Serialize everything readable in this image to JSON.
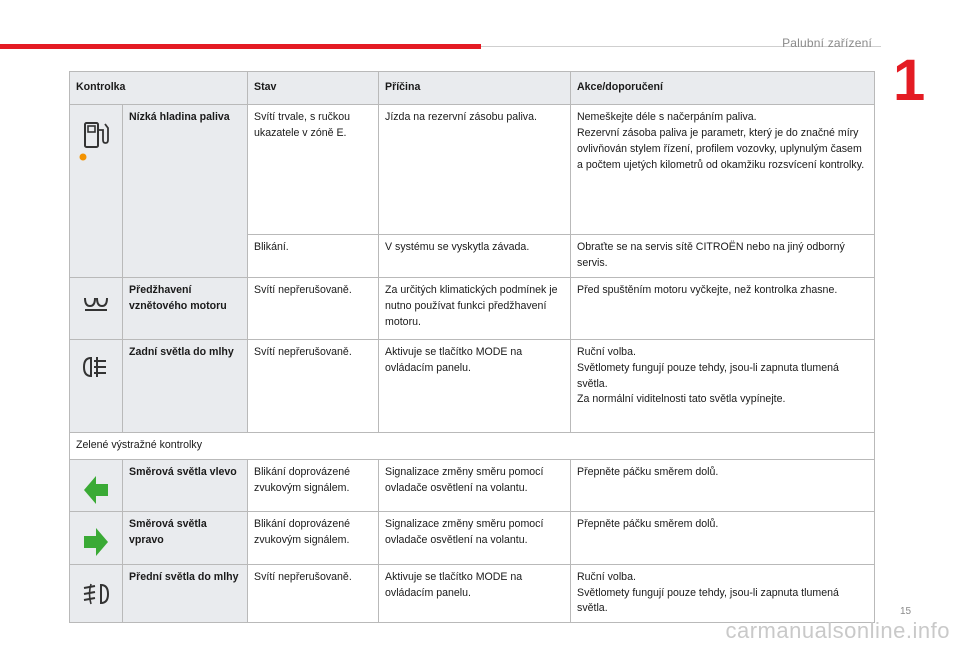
{
  "header": {
    "section_title": "Palubní zařízení",
    "chapter_number": "1",
    "accent_color": "#e41b23"
  },
  "table": {
    "columns": [
      "Kontrolka",
      "Stav",
      "Příčina",
      "Akce/doporučení"
    ],
    "rows": [
      {
        "icon": "fuel-pump-icon",
        "name": "Nízká hladina paliva",
        "entries": [
          {
            "stav": "Svítí trvale, s ručkou ukazatele v zóně E.",
            "pricina": "Jízda na rezervní zásobu paliva.",
            "akce": "Nemeškejte déle s načerpáním paliva.\nRezervní zásoba paliva je parametr, který je do značné míry ovlivňován stylem řízení, profilem vozovky, uplynulým časem a počtem ujetých kilometrů od okamžiku rozsvícení kontrolky."
          },
          {
            "stav": "Blikání.",
            "pricina": "V systému se vyskytla závada.",
            "akce": "Obraťte se na servis sítě CITROËN nebo na jiný odborný servis."
          }
        ]
      },
      {
        "icon": "glow-plug-icon",
        "name": "Předžhavení vznětového motoru",
        "stav": "Svítí nepřerušovaně.",
        "pricina": "Za určitých klimatických podmínek je nutno používat funkci předžhavení motoru.",
        "akce": "Před spuštěním motoru vyčkejte, než kontrolka zhasne."
      },
      {
        "icon": "rear-fog-light-icon",
        "name": "Zadní světla do mlhy",
        "stav": "Svítí nepřerušovaně.",
        "pricina": "Aktivuje se tlačítko MODE na ovládacím panelu.",
        "akce": "Ruční volba.\nSvětlomety fungují pouze tehdy, jsou-li zapnuta tlumená světla.\nZa normální viditelnosti tato světla vypínejte."
      }
    ],
    "section_label": "Zelené výstražné kontrolky",
    "green_rows": [
      {
        "icon": "arrow-left-icon",
        "name": "Směrová světla vlevo",
        "stav": "Blikání doprovázené zvukovým signálem.",
        "pricina": "Signalizace změny směru pomocí ovladače osvětlení na volantu.",
        "akce": "Přepněte páčku směrem dolů."
      },
      {
        "icon": "arrow-right-icon",
        "name": "Směrová světla vpravo",
        "stav": "Blikání doprovázené zvukovým signálem.",
        "pricina": "Signalizace změny směru pomocí ovladače osvětlení na volantu.",
        "akce": "Přepněte páčku směrem dolů."
      },
      {
        "icon": "front-fog-light-icon",
        "name": "Přední světla do mlhy",
        "stav": "Svítí nepřerušovaně.",
        "pricina": "Aktivuje se tlačítko MODE na ovládacím panelu.",
        "akce": "Ruční volba.\nSvětlomety fungují pouze tehdy, jsou-li zapnuta tlumená světla."
      }
    ]
  },
  "footer": {
    "page_number": "15",
    "watermark": "carmanualsonline.info"
  },
  "colors": {
    "warning_orange": "#f39200",
    "indicator_green": "#3aaa35",
    "header_fill": "#e9ebee"
  }
}
